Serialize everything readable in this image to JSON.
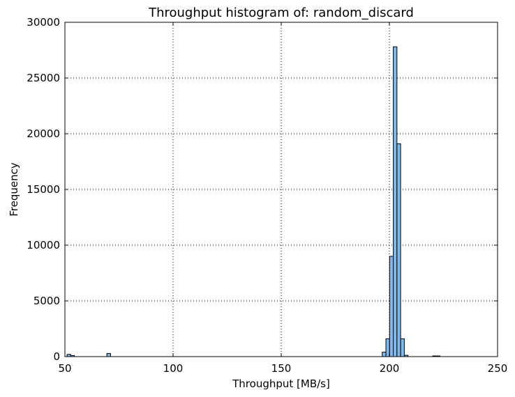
{
  "chart_data": {
    "type": "bar",
    "title": "Throughput histogram of: random_discard",
    "xlabel": "Throughput [MB/s]",
    "ylabel": "Frequency",
    "xlim": [
      50,
      250
    ],
    "ylim": [
      0,
      30000
    ],
    "x_ticks": [
      "50",
      "100",
      "150",
      "200",
      "250"
    ],
    "y_ticks": [
      "0",
      "5000",
      "10000",
      "15000",
      "20000",
      "25000",
      "30000"
    ],
    "grid": true,
    "bar_color": "#7fb8ea",
    "edge_color": "#000000",
    "bin_width": 1.7,
    "bins": [
      {
        "x": 51.0,
        "count": 200
      },
      {
        "x": 52.7,
        "count": 100
      },
      {
        "x": 69.4,
        "count": 280
      },
      {
        "x": 196.7,
        "count": 400
      },
      {
        "x": 198.4,
        "count": 1600
      },
      {
        "x": 200.1,
        "count": 9000
      },
      {
        "x": 201.8,
        "count": 27800
      },
      {
        "x": 203.5,
        "count": 19100
      },
      {
        "x": 205.2,
        "count": 1600
      },
      {
        "x": 206.9,
        "count": 120
      },
      {
        "x": 220.0,
        "count": 60
      },
      {
        "x": 221.7,
        "count": 60
      }
    ]
  }
}
